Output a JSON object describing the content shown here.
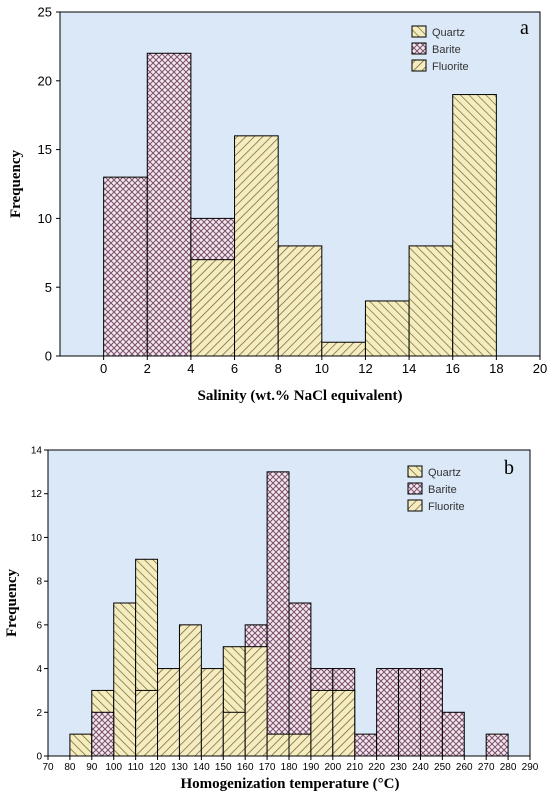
{
  "colors": {
    "plot_bg": "#dbe8f7",
    "bar_fill": "#f5ecc2",
    "quartz_hatch": "#6b6b1f",
    "barite_hatch": "#7a4f6e",
    "fluorite_hatch": "#6b5b2a",
    "outline": "#000000"
  },
  "chart_data": [
    {
      "type": "bar",
      "panel_label": "a",
      "title": "",
      "xlabel": "Salinity (wt.% NaCl equivalent)",
      "ylabel": "Frequency",
      "xlim": [
        -2,
        20
      ],
      "ylim": [
        0,
        25
      ],
      "xticks": [
        "0",
        "2",
        "4",
        "6",
        "8",
        "10",
        "12",
        "14",
        "16",
        "18",
        "20"
      ],
      "yticks": [
        "0",
        "5",
        "10",
        "15",
        "20",
        "25"
      ],
      "legend": {
        "placement": "top-right",
        "entries": [
          "Quartz",
          "Barite",
          "Fluorite"
        ]
      },
      "series": [
        {
          "name": "Barite",
          "pattern": "crosshatch",
          "bins": [
            {
              "x0": 0,
              "x1": 2,
              "value": 13
            },
            {
              "x0": 2,
              "x1": 4,
              "value": 22
            },
            {
              "x0": 4,
              "x1": 6,
              "value": 10
            }
          ]
        },
        {
          "name": "Fluorite",
          "pattern": "hatch-right",
          "bins": [
            {
              "x0": 4,
              "x1": 6,
              "value": 7
            },
            {
              "x0": 6,
              "x1": 8,
              "value": 16
            },
            {
              "x0": 8,
              "x1": 10,
              "value": 8
            },
            {
              "x0": 10,
              "x1": 12,
              "value": 1
            },
            {
              "x0": 12,
              "x1": 14,
              "value": 3
            }
          ]
        },
        {
          "name": "Quartz",
          "pattern": "hatch-left",
          "bins": [
            {
              "x0": 12,
              "x1": 14,
              "value": 4
            },
            {
              "x0": 14,
              "x1": 16,
              "value": 8
            },
            {
              "x0": 16,
              "x1": 18,
              "value": 19
            }
          ]
        }
      ]
    },
    {
      "type": "bar",
      "panel_label": "b",
      "title": "",
      "xlabel": "Homogenization temperature (°C)",
      "ylabel": "Frequency",
      "xlim": [
        70,
        290
      ],
      "ylim": [
        0,
        14
      ],
      "xticks": [
        "70",
        "80",
        "90",
        "100",
        "110",
        "120",
        "130",
        "140",
        "150",
        "160",
        "170",
        "180",
        "190",
        "200",
        "210",
        "220",
        "230",
        "240",
        "250",
        "260",
        "270",
        "280",
        "290"
      ],
      "yticks": [
        "0",
        "2",
        "4",
        "6",
        "8",
        "10",
        "12",
        "14"
      ],
      "legend": {
        "placement": "top-right",
        "entries": [
          "Quartz",
          "Barite",
          "Fluorite"
        ]
      },
      "series": [
        {
          "name": "Quartz",
          "pattern": "hatch-left",
          "bins": [
            {
              "x0": 80,
              "x1": 90,
              "value": 1
            },
            {
              "x0": 90,
              "x1": 100,
              "value": 3
            },
            {
              "x0": 100,
              "x1": 110,
              "value": 7
            },
            {
              "x0": 110,
              "x1": 120,
              "value": 9
            },
            {
              "x0": 150,
              "x1": 160,
              "value": 5
            },
            {
              "x0": 220,
              "x1": 230,
              "value": 1
            }
          ]
        },
        {
          "name": "Barite",
          "pattern": "crosshatch",
          "bins": [
            {
              "x0": 90,
              "x1": 100,
              "value": 2
            },
            {
              "x0": 160,
              "x1": 170,
              "value": 6
            },
            {
              "x0": 170,
              "x1": 180,
              "value": 13
            },
            {
              "x0": 180,
              "x1": 190,
              "value": 7
            },
            {
              "x0": 190,
              "x1": 200,
              "value": 4
            },
            {
              "x0": 200,
              "x1": 210,
              "value": 4
            },
            {
              "x0": 210,
              "x1": 220,
              "value": 1
            },
            {
              "x0": 220,
              "x1": 230,
              "value": 4
            },
            {
              "x0": 230,
              "x1": 240,
              "value": 4
            },
            {
              "x0": 240,
              "x1": 250,
              "value": 4
            },
            {
              "x0": 250,
              "x1": 260,
              "value": 2
            },
            {
              "x0": 270,
              "x1": 280,
              "value": 1
            }
          ]
        },
        {
          "name": "Fluorite",
          "pattern": "hatch-right",
          "bins": [
            {
              "x0": 110,
              "x1": 120,
              "value": 3
            },
            {
              "x0": 120,
              "x1": 130,
              "value": 4
            },
            {
              "x0": 130,
              "x1": 140,
              "value": 6
            },
            {
              "x0": 140,
              "x1": 150,
              "value": 4
            },
            {
              "x0": 150,
              "x1": 160,
              "value": 2
            },
            {
              "x0": 160,
              "x1": 170,
              "value": 5
            },
            {
              "x0": 170,
              "x1": 180,
              "value": 1
            },
            {
              "x0": 180,
              "x1": 190,
              "value": 1
            },
            {
              "x0": 190,
              "x1": 200,
              "value": 3
            },
            {
              "x0": 200,
              "x1": 210,
              "value": 3
            }
          ]
        }
      ]
    }
  ]
}
